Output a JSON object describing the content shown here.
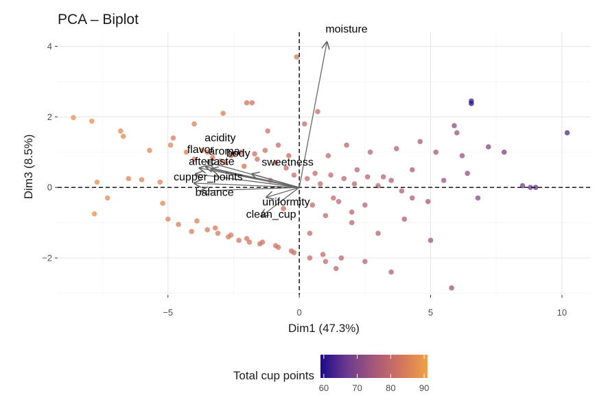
{
  "chart_data": {
    "type": "scatter",
    "title": "PCA – Biplot",
    "xlabel": "Dim1 (47.3%)",
    "ylabel": "Dim3 (8.5%)",
    "xlim": [
      -9.2,
      11.1
    ],
    "ylim": [
      -3.05,
      4.4
    ],
    "x_ticks": [
      -5,
      0,
      5,
      10
    ],
    "x_tick_labels": [
      "−5",
      "0",
      "5",
      "10"
    ],
    "y_ticks": [
      -2,
      0,
      2,
      4
    ],
    "y_tick_labels": [
      "−2",
      "0",
      "2",
      "4"
    ],
    "grid": true,
    "reference_lines": {
      "x": 0,
      "y": 0,
      "style": "dashed"
    },
    "color_scale": {
      "title": "Total cup points",
      "min": 59,
      "max": 91,
      "ticks": [
        60,
        70,
        80,
        90
      ],
      "tick_labels": [
        "60",
        "70",
        "80",
        "90"
      ],
      "colors": [
        "#1c0a8c",
        "#6b3b8c",
        "#a5587a",
        "#d2745e",
        "#f0a146"
      ],
      "position": "bottom"
    },
    "variables": [
      {
        "label": "moisture",
        "x": 1.05,
        "y": 4.12
      },
      {
        "label": "sweetness",
        "x": -1.8,
        "y": 0.38
      },
      {
        "label": "acidity",
        "x": -3.5,
        "y": 0.72
      },
      {
        "label": "aroma",
        "x": -3.55,
        "y": 0.58
      },
      {
        "label": "flavor",
        "x": -3.8,
        "y": 0.55
      },
      {
        "label": "body",
        "x": -3.35,
        "y": 0.52
      },
      {
        "label": "aftertaste",
        "x": -3.95,
        "y": 0.38
      },
      {
        "label": "cupper_points",
        "x": -4.0,
        "y": 0.12
      },
      {
        "label": "balance",
        "x": -3.75,
        "y": -0.1
      },
      {
        "label": "uniformity",
        "x": -1.25,
        "y": -0.28
      },
      {
        "label": "clean_cup",
        "x": -1.45,
        "y": -0.82
      }
    ],
    "arrow_color": "#666666",
    "points": [
      {
        "x": -8.6,
        "y": 1.98,
        "v": 88
      },
      {
        "x": -7.9,
        "y": 1.88,
        "v": 88
      },
      {
        "x": -7.7,
        "y": 0.15,
        "v": 88
      },
      {
        "x": -7.3,
        "y": -0.3,
        "v": 87
      },
      {
        "x": -7.8,
        "y": -0.75,
        "v": 88
      },
      {
        "x": -6.8,
        "y": 1.6,
        "v": 87
      },
      {
        "x": -6.7,
        "y": 1.45,
        "v": 87
      },
      {
        "x": -6.5,
        "y": 0.25,
        "v": 86
      },
      {
        "x": -6.0,
        "y": 0.22,
        "v": 86
      },
      {
        "x": -5.7,
        "y": 1.05,
        "v": 86
      },
      {
        "x": -5.3,
        "y": 0.15,
        "v": 86
      },
      {
        "x": -5.2,
        "y": -0.45,
        "v": 86
      },
      {
        "x": -5.0,
        "y": -0.9,
        "v": 86
      },
      {
        "x": -4.9,
        "y": 1.2,
        "v": 86
      },
      {
        "x": -4.8,
        "y": 1.4,
        "v": 85
      },
      {
        "x": -4.6,
        "y": -1.05,
        "v": 85
      },
      {
        "x": -4.3,
        "y": 1.0,
        "v": 85
      },
      {
        "x": -4.0,
        "y": 1.8,
        "v": 85
      },
      {
        "x": -4.1,
        "y": -1.25,
        "v": 85
      },
      {
        "x": -3.9,
        "y": -0.95,
        "v": 85
      },
      {
        "x": -3.7,
        "y": 1.05,
        "v": 85
      },
      {
        "x": -3.5,
        "y": -1.2,
        "v": 84
      },
      {
        "x": -3.3,
        "y": 0.85,
        "v": 84
      },
      {
        "x": -3.1,
        "y": -1.3,
        "v": 84
      },
      {
        "x": -2.9,
        "y": 2.1,
        "v": 84
      },
      {
        "x": -2.8,
        "y": 0.7,
        "v": 83
      },
      {
        "x": -2.7,
        "y": -1.4,
        "v": 84
      },
      {
        "x": -2.5,
        "y": 0.95,
        "v": 83
      },
      {
        "x": -2.3,
        "y": -1.5,
        "v": 83
      },
      {
        "x": -2.1,
        "y": 0.6,
        "v": 83
      },
      {
        "x": -2.0,
        "y": 2.4,
        "v": 82
      },
      {
        "x": -1.9,
        "y": -1.55,
        "v": 83
      },
      {
        "x": -1.8,
        "y": 2.4,
        "v": 82
      },
      {
        "x": -1.6,
        "y": 0.8,
        "v": 82
      },
      {
        "x": -1.5,
        "y": -1.6,
        "v": 82
      },
      {
        "x": -1.2,
        "y": 1.6,
        "v": 82
      },
      {
        "x": -1.1,
        "y": 0.2,
        "v": 82
      },
      {
        "x": -0.9,
        "y": -1.65,
        "v": 82
      },
      {
        "x": -0.8,
        "y": 1.2,
        "v": 81
      },
      {
        "x": -0.6,
        "y": -0.6,
        "v": 82
      },
      {
        "x": -0.4,
        "y": 0.9,
        "v": 81
      },
      {
        "x": -0.3,
        "y": -1.8,
        "v": 81
      },
      {
        "x": -0.1,
        "y": 3.7,
        "v": 83
      },
      {
        "x": 0.2,
        "y": 1.8,
        "v": 81
      },
      {
        "x": 0.4,
        "y": -1.3,
        "v": 80
      },
      {
        "x": 0.6,
        "y": 0.4,
        "v": 80
      },
      {
        "x": 0.7,
        "y": 2.15,
        "v": 81
      },
      {
        "x": 0.9,
        "y": -1.9,
        "v": 80
      },
      {
        "x": 1.1,
        "y": 0.9,
        "v": 80
      },
      {
        "x": 1.3,
        "y": -0.3,
        "v": 80
      },
      {
        "x": 1.6,
        "y": -2.0,
        "v": 79
      },
      {
        "x": 1.8,
        "y": 1.2,
        "v": 79
      },
      {
        "x": 2.0,
        "y": -0.7,
        "v": 79
      },
      {
        "x": 2.2,
        "y": 0.5,
        "v": 79
      },
      {
        "x": 2.5,
        "y": -2.1,
        "v": 78
      },
      {
        "x": 2.7,
        "y": 1.0,
        "v": 78
      },
      {
        "x": 3.0,
        "y": -1.3,
        "v": 78
      },
      {
        "x": 3.2,
        "y": 0.3,
        "v": 78
      },
      {
        "x": 3.5,
        "y": -2.4,
        "v": 77
      },
      {
        "x": 3.7,
        "y": 1.1,
        "v": 77
      },
      {
        "x": 4.0,
        "y": -0.9,
        "v": 77
      },
      {
        "x": 4.3,
        "y": 0.5,
        "v": 76
      },
      {
        "x": 4.6,
        "y": 1.3,
        "v": 76
      },
      {
        "x": 4.9,
        "y": -0.4,
        "v": 75
      },
      {
        "x": 5.2,
        "y": 1.0,
        "v": 75
      },
      {
        "x": 5.0,
        "y": -1.5,
        "v": 74
      },
      {
        "x": 5.5,
        "y": 0.2,
        "v": 74
      },
      {
        "x": 5.8,
        "y": -2.85,
        "v": 74
      },
      {
        "x": 5.9,
        "y": 1.75,
        "v": 72
      },
      {
        "x": 6.0,
        "y": 1.55,
        "v": 73
      },
      {
        "x": 6.2,
        "y": 0.9,
        "v": 73
      },
      {
        "x": 6.4,
        "y": 0.4,
        "v": 72
      },
      {
        "x": 6.55,
        "y": 2.45,
        "v": 62
      },
      {
        "x": 6.55,
        "y": 2.38,
        "v": 60
      },
      {
        "x": 6.8,
        "y": -0.3,
        "v": 71
      },
      {
        "x": 7.2,
        "y": 1.15,
        "v": 70
      },
      {
        "x": 7.8,
        "y": 1.0,
        "v": 69
      },
      {
        "x": 8.5,
        "y": 0.05,
        "v": 68
      },
      {
        "x": 8.8,
        "y": 0.0,
        "v": 67
      },
      {
        "x": 9.0,
        "y": 0.0,
        "v": 66
      },
      {
        "x": 10.2,
        "y": 1.55,
        "v": 64
      }
    ],
    "cluster_points": [
      {
        "x": -4.0,
        "y": 0.8,
        "v": 84
      },
      {
        "x": -3.5,
        "y": 1.0,
        "v": 84
      },
      {
        "x": -3.0,
        "y": 0.75,
        "v": 83
      },
      {
        "x": -2.6,
        "y": 0.9,
        "v": 83
      },
      {
        "x": -2.2,
        "y": 1.0,
        "v": 83
      },
      {
        "x": -1.7,
        "y": 0.95,
        "v": 82
      },
      {
        "x": -1.3,
        "y": 1.05,
        "v": 82
      },
      {
        "x": -0.9,
        "y": 0.7,
        "v": 82
      },
      {
        "x": -0.5,
        "y": 0.55,
        "v": 81
      },
      {
        "x": -0.2,
        "y": 0.35,
        "v": 81
      },
      {
        "x": 0.3,
        "y": 0.25,
        "v": 80
      },
      {
        "x": 0.8,
        "y": 0.1,
        "v": 80
      },
      {
        "x": 1.2,
        "y": 0.35,
        "v": 80
      },
      {
        "x": 1.7,
        "y": 0.25,
        "v": 79
      },
      {
        "x": 2.1,
        "y": 0.1,
        "v": 79
      },
      {
        "x": 2.6,
        "y": 0.3,
        "v": 78
      },
      {
        "x": 3.0,
        "y": 0.05,
        "v": 78
      },
      {
        "x": 3.5,
        "y": 0.2,
        "v": 77
      },
      {
        "x": 3.9,
        "y": -0.1,
        "v": 77
      },
      {
        "x": 4.3,
        "y": -0.3,
        "v": 76
      },
      {
        "x": 0.5,
        "y": -0.5,
        "v": 80
      },
      {
        "x": 1.0,
        "y": -0.8,
        "v": 80
      },
      {
        "x": 1.5,
        "y": -0.4,
        "v": 79
      },
      {
        "x": 2.0,
        "y": -1.0,
        "v": 79
      },
      {
        "x": 2.5,
        "y": -0.5,
        "v": 78
      },
      {
        "x": -3.2,
        "y": -1.15,
        "v": 84
      },
      {
        "x": -2.6,
        "y": -1.35,
        "v": 84
      },
      {
        "x": -2.0,
        "y": -1.45,
        "v": 83
      },
      {
        "x": -1.4,
        "y": -1.55,
        "v": 83
      },
      {
        "x": -0.8,
        "y": -1.7,
        "v": 82
      },
      {
        "x": -0.2,
        "y": -1.85,
        "v": 81
      },
      {
        "x": 0.4,
        "y": -2.0,
        "v": 81
      },
      {
        "x": 1.0,
        "y": -2.1,
        "v": 80
      },
      {
        "x": 1.4,
        "y": -2.3,
        "v": 79
      }
    ]
  }
}
